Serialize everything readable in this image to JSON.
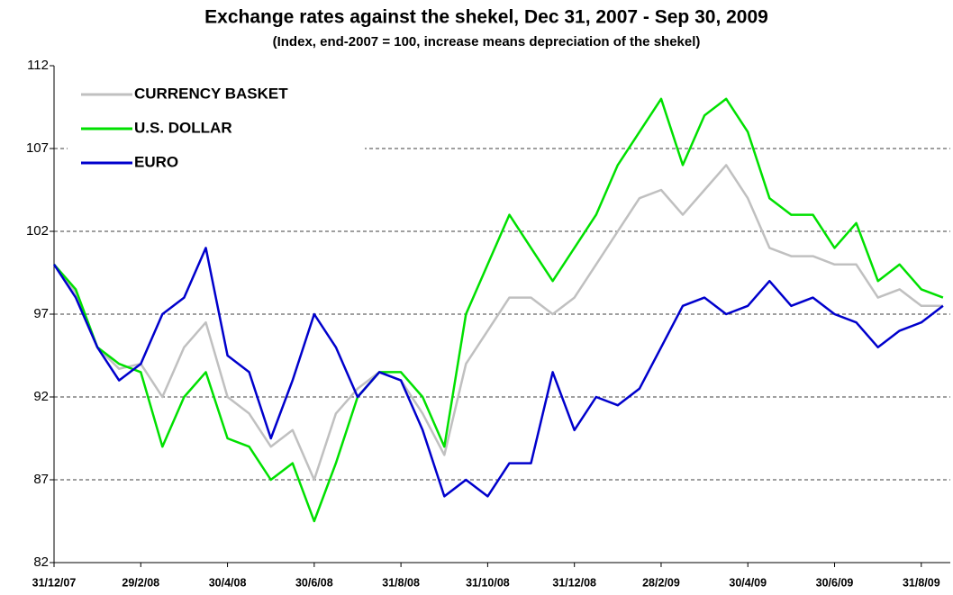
{
  "chart_data": {
    "type": "line",
    "title": "Exchange rates against the shekel, Dec 31, 2007 - Sep 30, 2009",
    "subtitle": "(Index, end-2007 = 100, increase means depreciation of the shekel)",
    "categories": [
      "31/12/07",
      null,
      null,
      null,
      "29/2/08",
      null,
      null,
      null,
      "30/4/08",
      null,
      null,
      null,
      "30/6/08",
      null,
      null,
      null,
      "31/8/08",
      null,
      null,
      null,
      "31/10/08",
      null,
      null,
      null,
      "31/12/08",
      null,
      null,
      null,
      "28/2/09",
      null,
      null,
      null,
      "30/4/09",
      null,
      null,
      null,
      "30/6/09",
      null,
      null,
      null,
      "31/8/09",
      null
    ],
    "series": [
      {
        "name": "CURRENCY BASKET",
        "color": "#c0c0c0",
        "values": [
          100,
          98.3,
          95,
          93.7,
          94,
          92,
          95,
          96.5,
          92,
          91,
          89,
          90,
          87,
          91,
          92.5,
          93.5,
          93,
          91,
          88.5,
          94,
          96,
          98,
          98,
          97,
          98,
          100,
          102,
          104,
          104.5,
          103,
          104.5,
          106,
          104,
          101,
          100.5,
          100.5,
          100,
          100,
          98,
          98.5,
          97.5,
          97.5
        ]
      },
      {
        "name": "U.S. DOLLAR",
        "color": "#00e000",
        "values": [
          100,
          98.5,
          95,
          94,
          93.5,
          89,
          92,
          93.5,
          89.5,
          89,
          87,
          88,
          84.5,
          88,
          92,
          93.5,
          93.5,
          92,
          89,
          97,
          100,
          103,
          101,
          99,
          101,
          103,
          106,
          108,
          110,
          106,
          109,
          110,
          108,
          104,
          103,
          103,
          101,
          102.5,
          99,
          100,
          98.5,
          98
        ]
      },
      {
        "name": "EURO",
        "color": "#0000cc",
        "values": [
          100,
          98,
          95,
          93,
          94,
          97,
          98,
          101,
          94.5,
          93.5,
          89.5,
          93,
          97,
          95,
          92,
          93.5,
          93,
          90,
          86,
          87,
          86,
          88,
          88,
          93.5,
          90,
          92,
          91.5,
          92.5,
          95,
          97.5,
          98,
          97,
          97.5,
          99,
          97.5,
          98,
          97,
          96.5,
          95,
          96,
          96.5,
          97.5
        ]
      }
    ],
    "ylim": [
      82,
      112
    ],
    "yticks": [
      82,
      87,
      92,
      97,
      102,
      107,
      112
    ],
    "grid": true,
    "legend": "upper left"
  }
}
